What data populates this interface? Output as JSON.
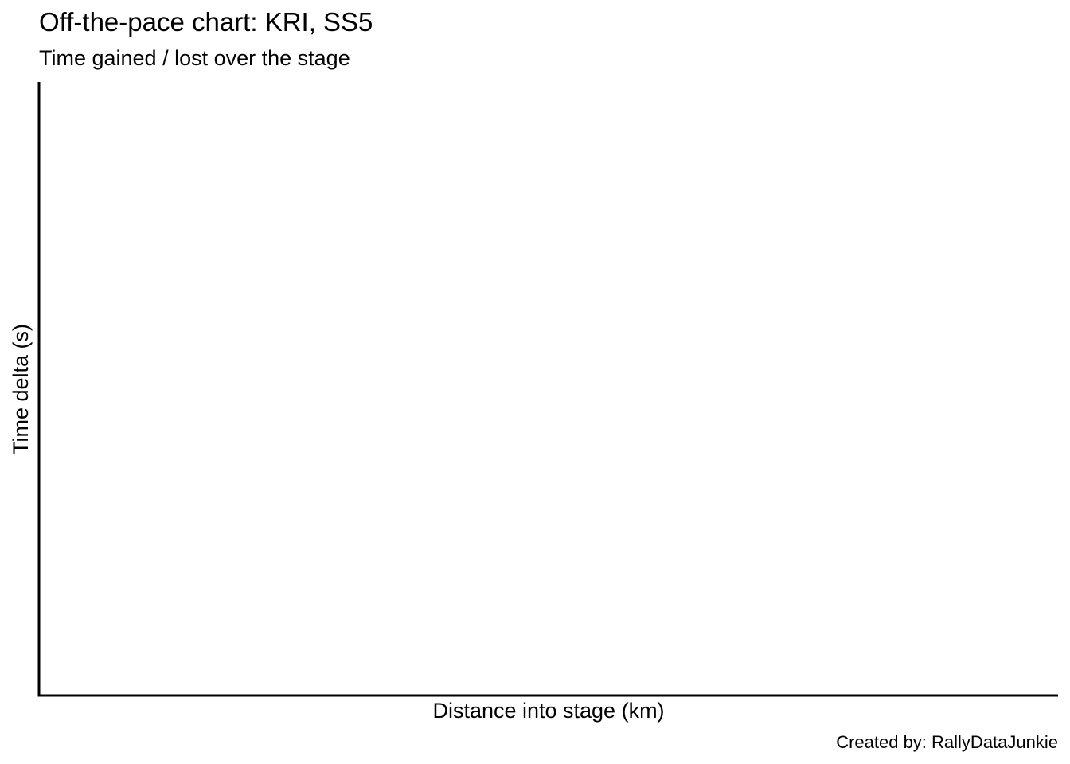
{
  "chart_data": {
    "type": "line",
    "title": "Off-the-pace chart: KRI, SS5",
    "subtitle": "Time gained / lost over the stage",
    "xlabel": "Distance into stage (km)",
    "ylabel": "Time delta (s)",
    "caption": "Created by: RallyDataJunkie",
    "series": [],
    "grid": false,
    "legend": "none"
  },
  "colors": {
    "axis": "#000000",
    "background": "#ffffff"
  }
}
